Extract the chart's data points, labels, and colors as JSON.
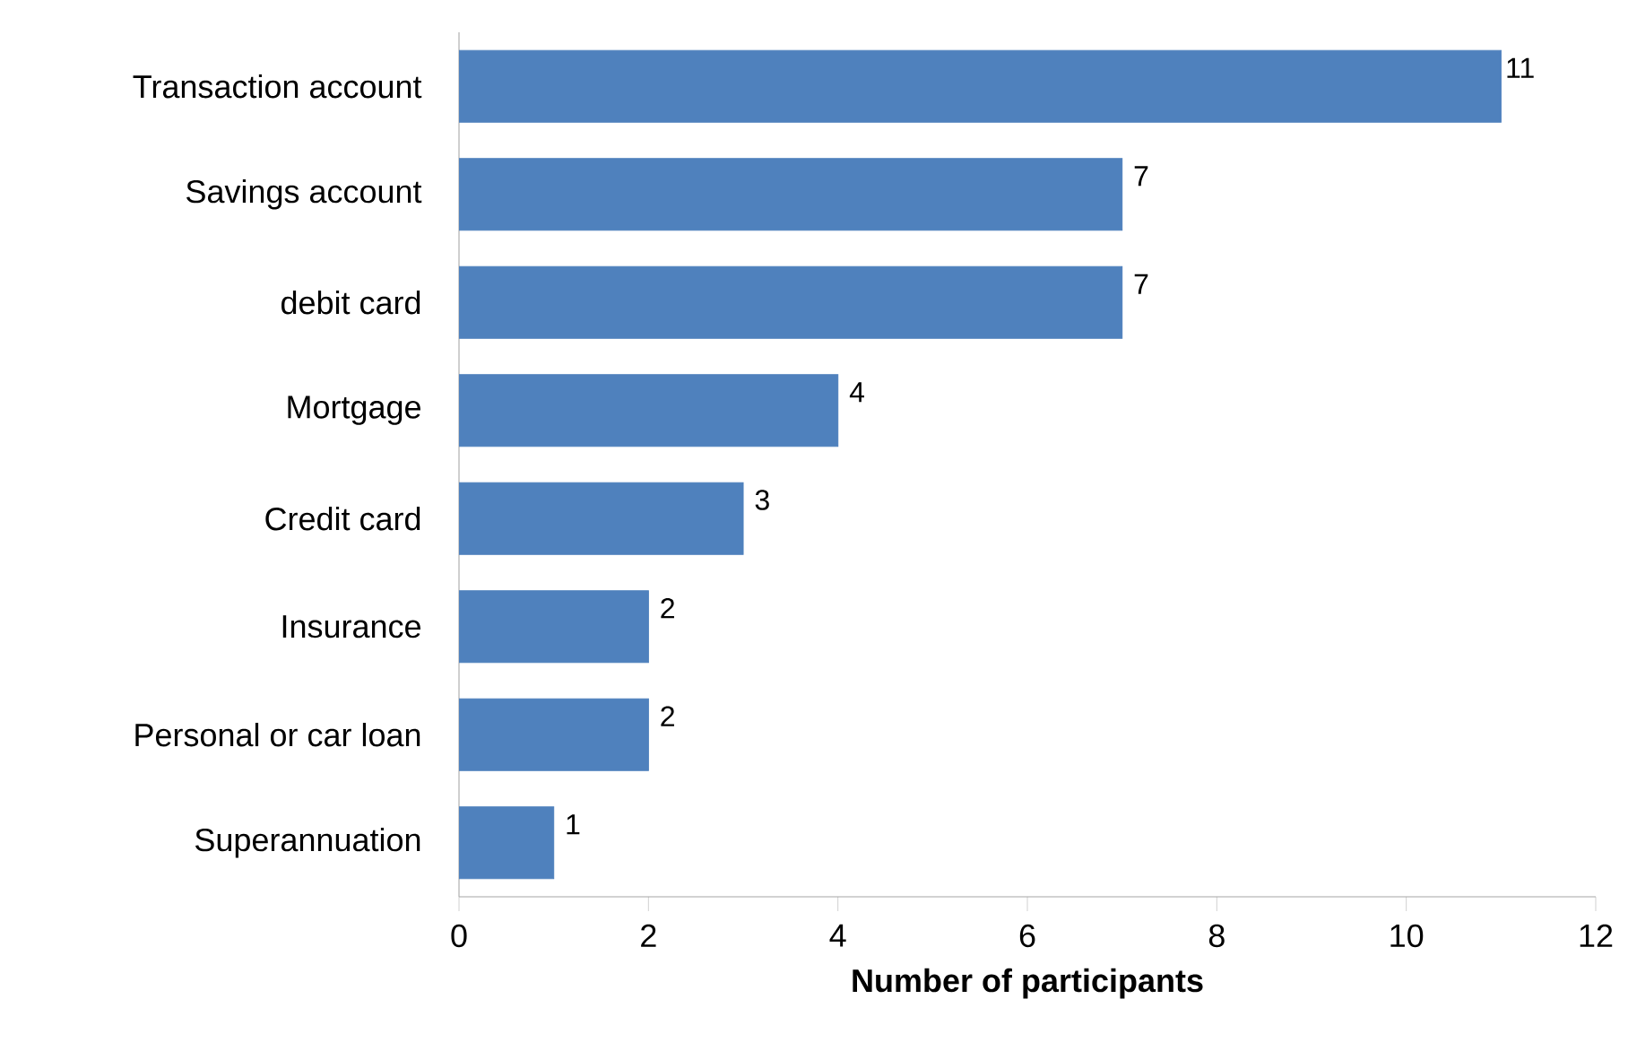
{
  "chart_data": {
    "type": "bar",
    "orientation": "horizontal",
    "xlabel": "Number of participants",
    "categories": [
      "Transaction account",
      "Savings account",
      "debit card",
      "Mortgage",
      "Credit card",
      "Insurance",
      "Personal or car loan",
      "Superannuation"
    ],
    "values": [
      11,
      7,
      7,
      4,
      3,
      2,
      2,
      1
    ],
    "color": "#4f81bd",
    "xlim": [
      0,
      12
    ],
    "xticks": [
      0,
      2,
      4,
      6,
      8,
      10,
      12
    ],
    "data_labels": true
  }
}
